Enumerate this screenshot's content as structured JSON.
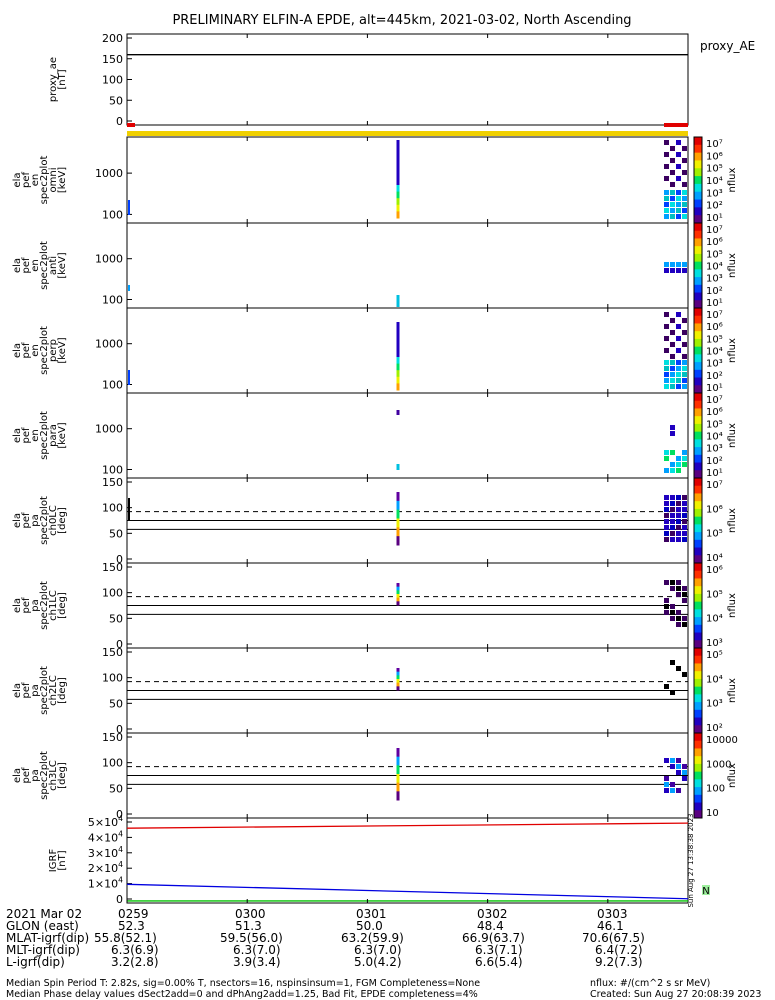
{
  "title": "PRELIMINARY ELFIN-A EPDE, alt=445km, 2021-03-02, North Ascending",
  "chart_data": {
    "type": "heatmap",
    "title": "PRELIMINARY ELFIN-A EPDE, alt=445km, 2021-03-02, North Ascending",
    "time_axis": {
      "start": "2021-03-02 02:59",
      "end": "2021-03-02 03:03:40",
      "ticks": [
        "0259",
        "0300",
        "0301",
        "0302",
        "0303"
      ]
    },
    "panels": [
      {
        "id": "proxy_ae",
        "type": "line",
        "ylabel_lines": [
          "proxy_ae",
          "[nT]"
        ],
        "ylim": [
          -10,
          210
        ],
        "yticks": [
          "200",
          "150",
          "100",
          "50",
          "0"
        ],
        "right_label": "proxy_AE",
        "series": [
          {
            "x": [
              "02:59",
              "03:03:40"
            ],
            "y": [
              160,
              160
            ]
          }
        ]
      },
      {
        "id": "omni",
        "type": "heatmap",
        "ylabel_lines": [
          "ela",
          "pef",
          "en",
          "spec2plot",
          "omni",
          "[keV]"
        ],
        "yscale": "log",
        "yticks": [
          "1000",
          "100"
        ],
        "colorbar": {
          "label": "nflux",
          "scale": "log",
          "ticks": [
            "10⁷",
            "10⁶",
            "10⁵",
            "10⁴",
            "10³",
            "10²",
            "10¹"
          ]
        }
      },
      {
        "id": "anti",
        "type": "heatmap",
        "ylabel_lines": [
          "ela",
          "pef",
          "en",
          "spec2plot",
          "anti",
          "[keV]"
        ],
        "yscale": "log",
        "yticks": [
          "1000",
          "100"
        ],
        "colorbar": {
          "label": "nflux",
          "scale": "log",
          "ticks": [
            "10⁷",
            "10⁶",
            "10⁵",
            "10⁴",
            "10³",
            "10²",
            "10¹"
          ]
        }
      },
      {
        "id": "perp",
        "type": "heatmap",
        "ylabel_lines": [
          "ela",
          "pef",
          "en",
          "spec2plot",
          "perp",
          "[keV]"
        ],
        "yscale": "log",
        "yticks": [
          "1000",
          "100"
        ],
        "colorbar": {
          "label": "nflux",
          "scale": "log",
          "ticks": [
            "10⁷",
            "10⁶",
            "10⁵",
            "10⁴",
            "10³",
            "10²",
            "10¹"
          ]
        }
      },
      {
        "id": "para",
        "type": "heatmap",
        "ylabel_lines": [
          "ela",
          "pef",
          "en",
          "spec2plot",
          "para",
          "[keV]"
        ],
        "yscale": "log",
        "yticks": [
          "1000",
          "100"
        ],
        "colorbar": {
          "label": "nflux",
          "scale": "log",
          "ticks": [
            "10⁷",
            "10⁶",
            "10⁵",
            "10⁴",
            "10³",
            "10²",
            "10¹"
          ]
        }
      },
      {
        "id": "ch0LC",
        "type": "heatmap",
        "ylabel_lines": [
          "ela",
          "pef",
          "pa",
          "spec2plot",
          "ch0LC",
          "[deg]"
        ],
        "ylim": [
          -10,
          190
        ],
        "yticks": [
          "150",
          "100",
          "50",
          "0"
        ],
        "colorbar": {
          "label": "nflux",
          "scale": "log",
          "ticks": [
            "10⁷",
            "10⁶",
            "10⁵",
            "10⁴"
          ]
        }
      },
      {
        "id": "ch1LC",
        "type": "heatmap",
        "ylabel_lines": [
          "ela",
          "pef",
          "pa",
          "spec2plot",
          "ch1LC",
          "[deg]"
        ],
        "ylim": [
          -10,
          190
        ],
        "yticks": [
          "150",
          "100",
          "50",
          "0"
        ],
        "colorbar": {
          "label": "nflux",
          "scale": "log",
          "ticks": [
            "10⁶",
            "10⁵",
            "10⁴",
            "10³"
          ]
        }
      },
      {
        "id": "ch2LC",
        "type": "heatmap",
        "ylabel_lines": [
          "ela",
          "pef",
          "pa",
          "spec2plot",
          "ch2LC",
          "[deg]"
        ],
        "ylim": [
          -10,
          190
        ],
        "yticks": [
          "150",
          "100",
          "50",
          "0"
        ],
        "colorbar": {
          "label": "nflux",
          "scale": "log",
          "ticks": [
            "10⁵",
            "10⁴",
            "10³",
            "10²"
          ]
        }
      },
      {
        "id": "ch3LC",
        "type": "heatmap",
        "ylabel_lines": [
          "ela",
          "pef",
          "pa",
          "spec2plot",
          "ch3LC",
          "[deg]"
        ],
        "ylim": [
          -10,
          190
        ],
        "yticks": [
          "150",
          "100",
          "50",
          "0"
        ],
        "colorbar": {
          "label": "nflux",
          "scale": "linear-log",
          "ticks": [
            "10000",
            "1000",
            "100",
            "10"
          ]
        }
      },
      {
        "id": "igrf",
        "type": "line",
        "ylabel_lines": [
          "IGRF",
          "[nT]"
        ],
        "ylim": [
          0,
          50000
        ],
        "yticks": [
          {
            "m": "5×10",
            "e": "4"
          },
          {
            "m": "4×10",
            "e": "4"
          },
          {
            "m": "3×10",
            "e": "4"
          },
          {
            "m": "2×10",
            "e": "4"
          },
          {
            "m": "1×10",
            "e": "4"
          },
          {
            "m": "0",
            "e": ""
          }
        ],
        "series": [
          {
            "color": "#e00000",
            "x": [
              "02:59",
              "03:03:40"
            ],
            "y": [
              44000,
              47000
            ]
          },
          {
            "color": "#0000e0",
            "x": [
              "02:59",
              "03:03:40"
            ],
            "y": [
              11000,
              2500
            ]
          },
          {
            "color": "#00c000",
            "x": [
              "02:59",
              "03:03:40"
            ],
            "y": [
              1200,
              1200
            ]
          }
        ],
        "right_letter": "N",
        "created_label": "Sun Aug 27 13:38:38 2023"
      }
    ],
    "orbit_table": [
      {
        "label": "2021 Mar 02",
        "values": [
          "0259",
          "0300",
          "0301",
          "0302",
          "0303"
        ]
      },
      {
        "label": "GLON (east)",
        "values": [
          "52.3",
          "51.3",
          "50.0",
          "48.4",
          "46.1"
        ]
      },
      {
        "label": "MLAT-igrf(dip)",
        "values": [
          "55.8(52.1)",
          "59.5(56.0)",
          "63.2(59.9)",
          "66.9(63.7)",
          "70.6(67.5)"
        ]
      },
      {
        "label": "MLT-igrf(dip)",
        "values": [
          "6.3(6.9)",
          "6.3(7.0)",
          "6.3(7.0)",
          "6.3(7.1)",
          "6.4(7.2)"
        ]
      },
      {
        "label": "L-igrf(dip)",
        "values": [
          "3.2(2.8)",
          "3.9(3.4)",
          "5.0(4.2)",
          "6.6(5.4)",
          "9.2(7.3)"
        ]
      }
    ]
  },
  "footer": {
    "line1_left": "Median Spin Period T: 2.82s, sig=0.00% T, nsectors=16, nspinsinsum=1, FGM Completeness=None",
    "line1_right": "nflux: #/(cm^2 s sr MeV)",
    "line2_left": "Median Phase delay values dSect2add=0 and dPhAng2add=1.25, Bad Fit, EPDE completeness=4%",
    "line2_right": "Created: Sun Aug 27 20:08:39 2023"
  }
}
